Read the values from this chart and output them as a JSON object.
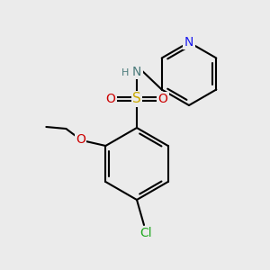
{
  "background_color": "#ebebeb",
  "atom_colors": {
    "C": "#000000",
    "N_pyridine": "#1a1aee",
    "N_amine": "#4a7a7a",
    "O": "#cc0000",
    "S": "#ccaa00",
    "Cl": "#22aa22",
    "H": "#4a7a7a"
  },
  "font_size_atom": 9,
  "figure_size": [
    3.0,
    3.0
  ],
  "dpi": 100
}
